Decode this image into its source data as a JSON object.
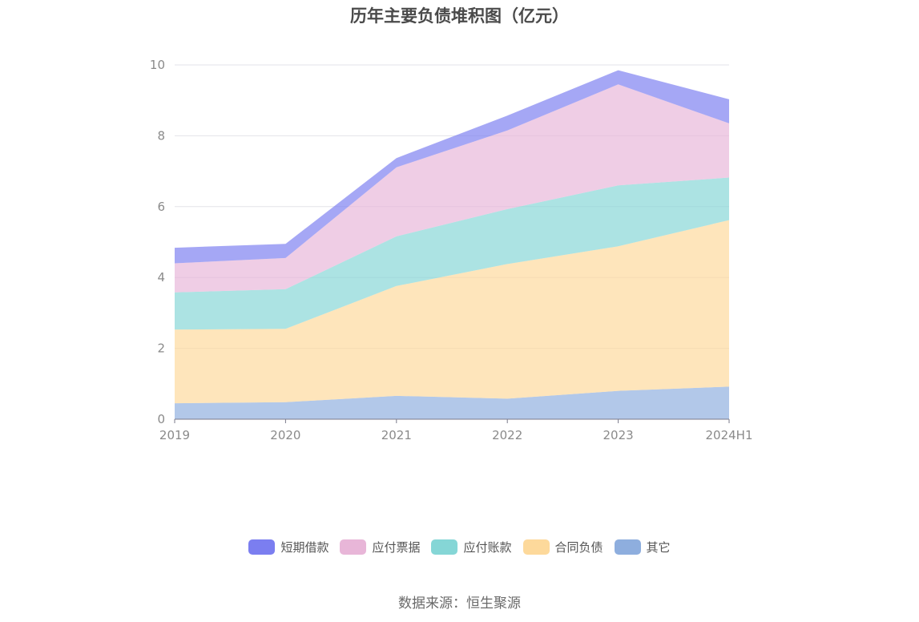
{
  "chart_data": {
    "type": "area",
    "stacked": true,
    "title": "历年主要负债堆积图（亿元）",
    "categories": [
      "2019",
      "2020",
      "2021",
      "2022",
      "2023",
      "2024H1"
    ],
    "ylim": [
      0,
      10
    ],
    "yticks": [
      0,
      2,
      4,
      6,
      8,
      10
    ],
    "grid": true,
    "legend_position": "bottom",
    "series": [
      {
        "name": "其它",
        "color": "#8eaede",
        "values": [
          0.45,
          0.48,
          0.66,
          0.58,
          0.8,
          0.92
        ]
      },
      {
        "name": "合同负债",
        "color": "#fdd99b",
        "values": [
          2.08,
          2.07,
          3.1,
          3.8,
          4.08,
          4.7
        ]
      },
      {
        "name": "应付账款",
        "color": "#85d6d6",
        "values": [
          1.05,
          1.12,
          1.4,
          1.55,
          1.72,
          1.2
        ]
      },
      {
        "name": "应付票据",
        "color": "#e8b6d8",
        "values": [
          0.82,
          0.88,
          1.95,
          2.22,
          2.85,
          1.53
        ]
      },
      {
        "name": "短期借款",
        "color": "#7b7ef0",
        "values": [
          0.44,
          0.4,
          0.26,
          0.42,
          0.4,
          0.68
        ]
      }
    ]
  },
  "legend_order": [
    "短期借款",
    "应付票据",
    "应付账款",
    "合同负债",
    "其它"
  ],
  "source": "数据来源：恒生聚源"
}
